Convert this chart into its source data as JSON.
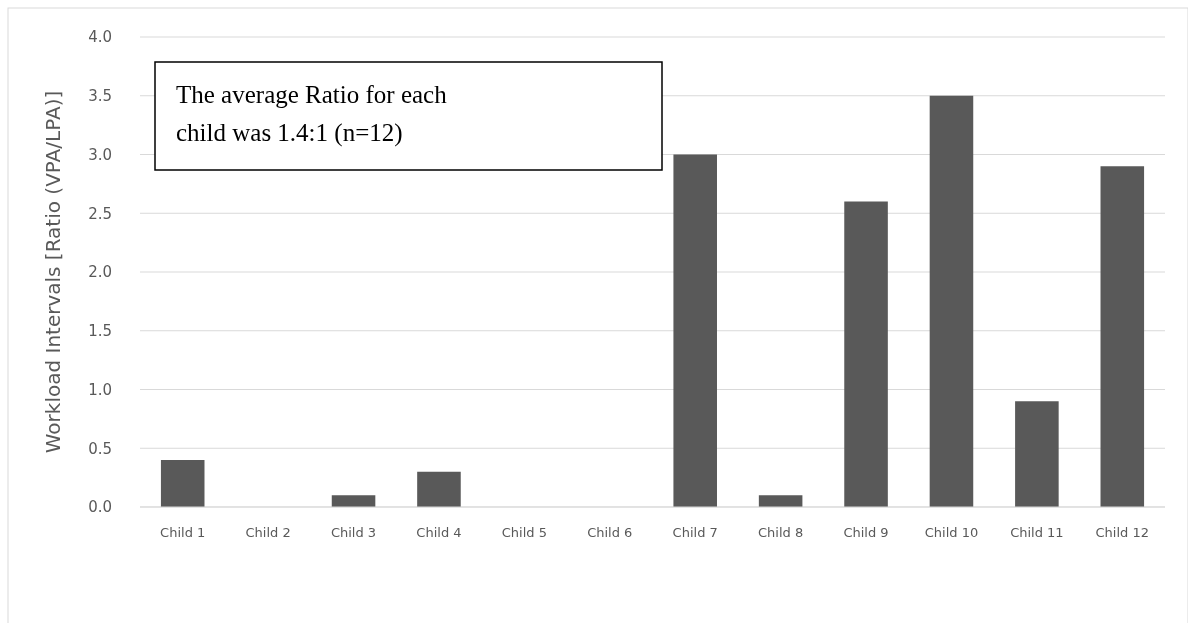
{
  "chart_data": {
    "type": "bar",
    "ylabel": "Workload Intervals [Ratio (VPA/LPA)]",
    "categories": [
      "Child 1",
      "Child 2",
      "Child 3",
      "Child 4",
      "Child 5",
      "Child 6",
      "Child 7",
      "Child 8",
      "Child 9",
      "Child 10",
      "Child 11",
      "Child 12"
    ],
    "values": [
      0.4,
      0,
      0.1,
      0.3,
      0,
      0,
      3.0,
      0.1,
      2.6,
      3.5,
      0.9,
      2.9
    ],
    "color": "#595959",
    "ylim": [
      0,
      4
    ],
    "yticks": [
      {
        "value": 0,
        "label": "0.0"
      },
      {
        "value": 0.5,
        "label": "0.5"
      },
      {
        "value": 1,
        "label": "1.0"
      },
      {
        "value": 1.5,
        "label": "1.5"
      },
      {
        "value": 2,
        "label": "2.0"
      },
      {
        "value": 2.5,
        "label": "2.5"
      },
      {
        "value": 3,
        "label": "3.0"
      },
      {
        "value": 3.5,
        "label": "3.5"
      },
      {
        "value": 4,
        "label": "4.0"
      }
    ],
    "grid": "y",
    "annotations": [
      "The average Ratio for each child was 1.4:1 (n=12)"
    ]
  }
}
